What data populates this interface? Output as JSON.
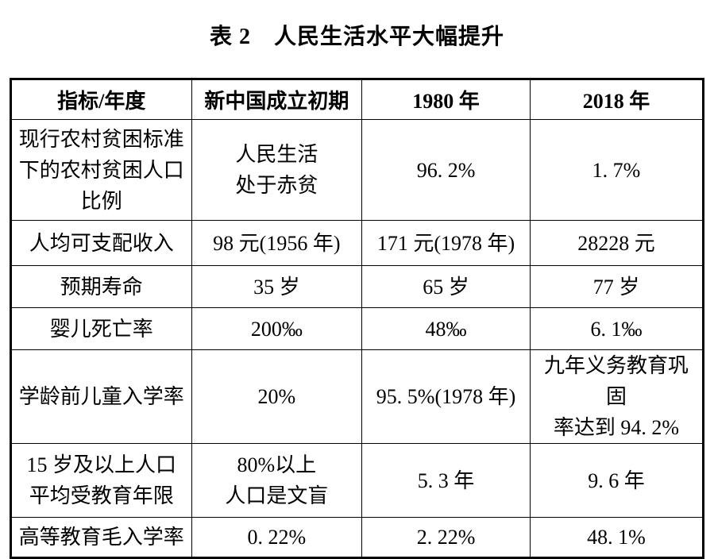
{
  "page": {
    "background_color": "#ffffff",
    "text_color": "#000000",
    "border_color": "#000000"
  },
  "title": "表 2　人民生活水平大幅提升",
  "table": {
    "headers": [
      "指标/年度",
      "新中国成立初期",
      "1980 年",
      "2018 年"
    ],
    "rows": [
      {
        "cells": [
          "现行农村贫困标准\n下的农村贫困人口\n比例",
          "人民生活\n处于赤贫",
          "96. 2%",
          "1. 7%"
        ]
      },
      {
        "cells": [
          "人均可支配收入",
          "98 元(1956 年)",
          "171 元(1978 年)",
          "28228 元"
        ]
      },
      {
        "cells": [
          "预期寿命",
          "35 岁",
          "65 岁",
          "77 岁"
        ]
      },
      {
        "cells": [
          "婴儿死亡率",
          "200‰",
          "48‰",
          "6. 1‰"
        ]
      },
      {
        "cells": [
          "学龄前儿童入学率",
          "20%",
          "95. 5%(1978 年)",
          "九年义务教育巩固\n率达到 94. 2%"
        ]
      },
      {
        "cells": [
          "15 岁及以上人口\n平均受教育年限",
          "80%以上\n人口是文盲",
          "5. 3 年",
          "9. 6 年"
        ]
      },
      {
        "cells": [
          "高等教育毛入学率",
          "0. 22%",
          "2. 22%",
          "48. 1%"
        ]
      }
    ]
  }
}
